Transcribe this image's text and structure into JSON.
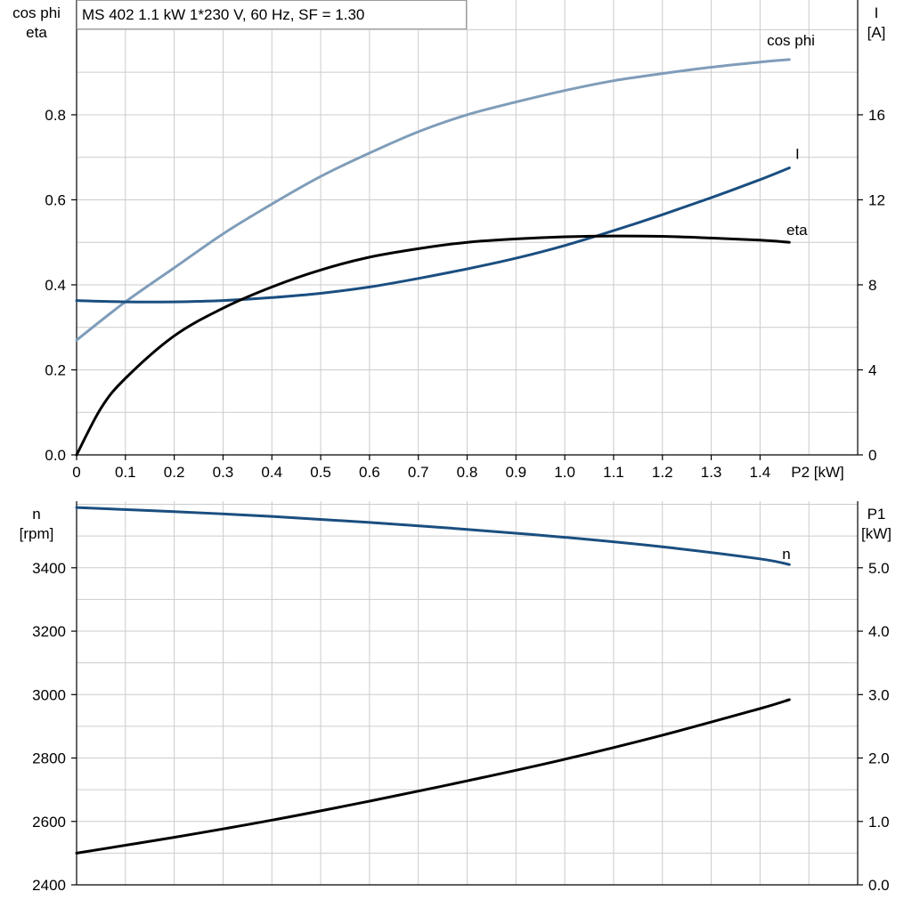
{
  "title": "MS 402   1.1 kW   1*230 V, 60 Hz, SF = 1.30",
  "colors": {
    "cosphi": "#7f9db9",
    "current": "#1a4e80",
    "eta": "#000000",
    "speed": "#1a4e80",
    "p1": "#000000",
    "grid": "#cccccc"
  },
  "chart_data": [
    {
      "type": "line",
      "x_title": "P2 [kW]",
      "x_ticks": [
        "0",
        "0.1",
        "0.2",
        "0.3",
        "0.4",
        "0.5",
        "0.6",
        "0.7",
        "0.8",
        "0.9",
        "1.0",
        "1.1",
        "1.2",
        "1.3",
        "1.4"
      ],
      "xlim": [
        0,
        1.6
      ],
      "y_left_title": [
        "cos phi",
        "eta"
      ],
      "y_left_ticks": [
        "0.0",
        "0.2",
        "0.4",
        "0.6",
        "0.8"
      ],
      "y_left_lim": [
        0,
        1.07
      ],
      "y_right_title": [
        "I",
        "[A]"
      ],
      "y_right_ticks": [
        "0",
        "4",
        "8",
        "12",
        "16"
      ],
      "y_right_lim": [
        0,
        21.4
      ],
      "grid": true,
      "series": [
        {
          "name": "cos phi",
          "axis": "left",
          "color": "#7f9db9",
          "x": [
            0,
            0.1,
            0.2,
            0.3,
            0.4,
            0.5,
            0.6,
            0.7,
            0.8,
            0.9,
            1.0,
            1.1,
            1.2,
            1.3,
            1.4,
            1.46
          ],
          "y": [
            0.27,
            0.36,
            0.44,
            0.52,
            0.59,
            0.655,
            0.71,
            0.76,
            0.8,
            0.83,
            0.857,
            0.88,
            0.897,
            0.912,
            0.924,
            0.93
          ]
        },
        {
          "name": "I",
          "axis": "right",
          "color": "#1a4e80",
          "x": [
            0,
            0.1,
            0.2,
            0.3,
            0.4,
            0.5,
            0.6,
            0.7,
            0.8,
            0.9,
            1.0,
            1.1,
            1.2,
            1.3,
            1.4,
            1.46
          ],
          "y": [
            7.26,
            7.2,
            7.2,
            7.26,
            7.4,
            7.6,
            7.9,
            8.3,
            8.75,
            9.25,
            9.85,
            10.55,
            11.3,
            12.1,
            12.95,
            13.5
          ]
        },
        {
          "name": "eta",
          "axis": "left",
          "color": "#000000",
          "x": [
            0,
            0.05,
            0.1,
            0.2,
            0.3,
            0.4,
            0.5,
            0.6,
            0.7,
            0.8,
            0.9,
            1.0,
            1.1,
            1.2,
            1.3,
            1.4,
            1.46
          ],
          "y": [
            0.0,
            0.11,
            0.18,
            0.28,
            0.345,
            0.395,
            0.435,
            0.465,
            0.485,
            0.5,
            0.508,
            0.513,
            0.515,
            0.514,
            0.51,
            0.505,
            0.5
          ]
        }
      ]
    },
    {
      "type": "line",
      "xlim": [
        0,
        1.6
      ],
      "y_left_title": [
        "n",
        "[rpm]"
      ],
      "y_left_ticks": [
        "2400",
        "2600",
        "2800",
        "3000",
        "3200",
        "3400"
      ],
      "y_left_lim": [
        2400,
        3610
      ],
      "y_right_title": [
        "P1",
        "[kW]"
      ],
      "y_right_ticks": [
        "0.0",
        "1.0",
        "2.0",
        "3.0",
        "4.0",
        "5.0"
      ],
      "y_right_lim": [
        0,
        6.05
      ],
      "grid": true,
      "series": [
        {
          "name": "n",
          "axis": "left",
          "color": "#1a4e80",
          "x": [
            0,
            0.2,
            0.4,
            0.6,
            0.8,
            1.0,
            1.2,
            1.4,
            1.46
          ],
          "y": [
            3590,
            3577,
            3562,
            3543,
            3521,
            3496,
            3466,
            3428,
            3410
          ]
        },
        {
          "axis": "right",
          "color": "#000000",
          "x": [
            0,
            0.2,
            0.4,
            0.6,
            0.8,
            1.0,
            1.2,
            1.4,
            1.46
          ],
          "y": [
            0.5,
            0.75,
            1.02,
            1.32,
            1.64,
            1.98,
            2.36,
            2.78,
            2.92
          ]
        }
      ]
    }
  ]
}
